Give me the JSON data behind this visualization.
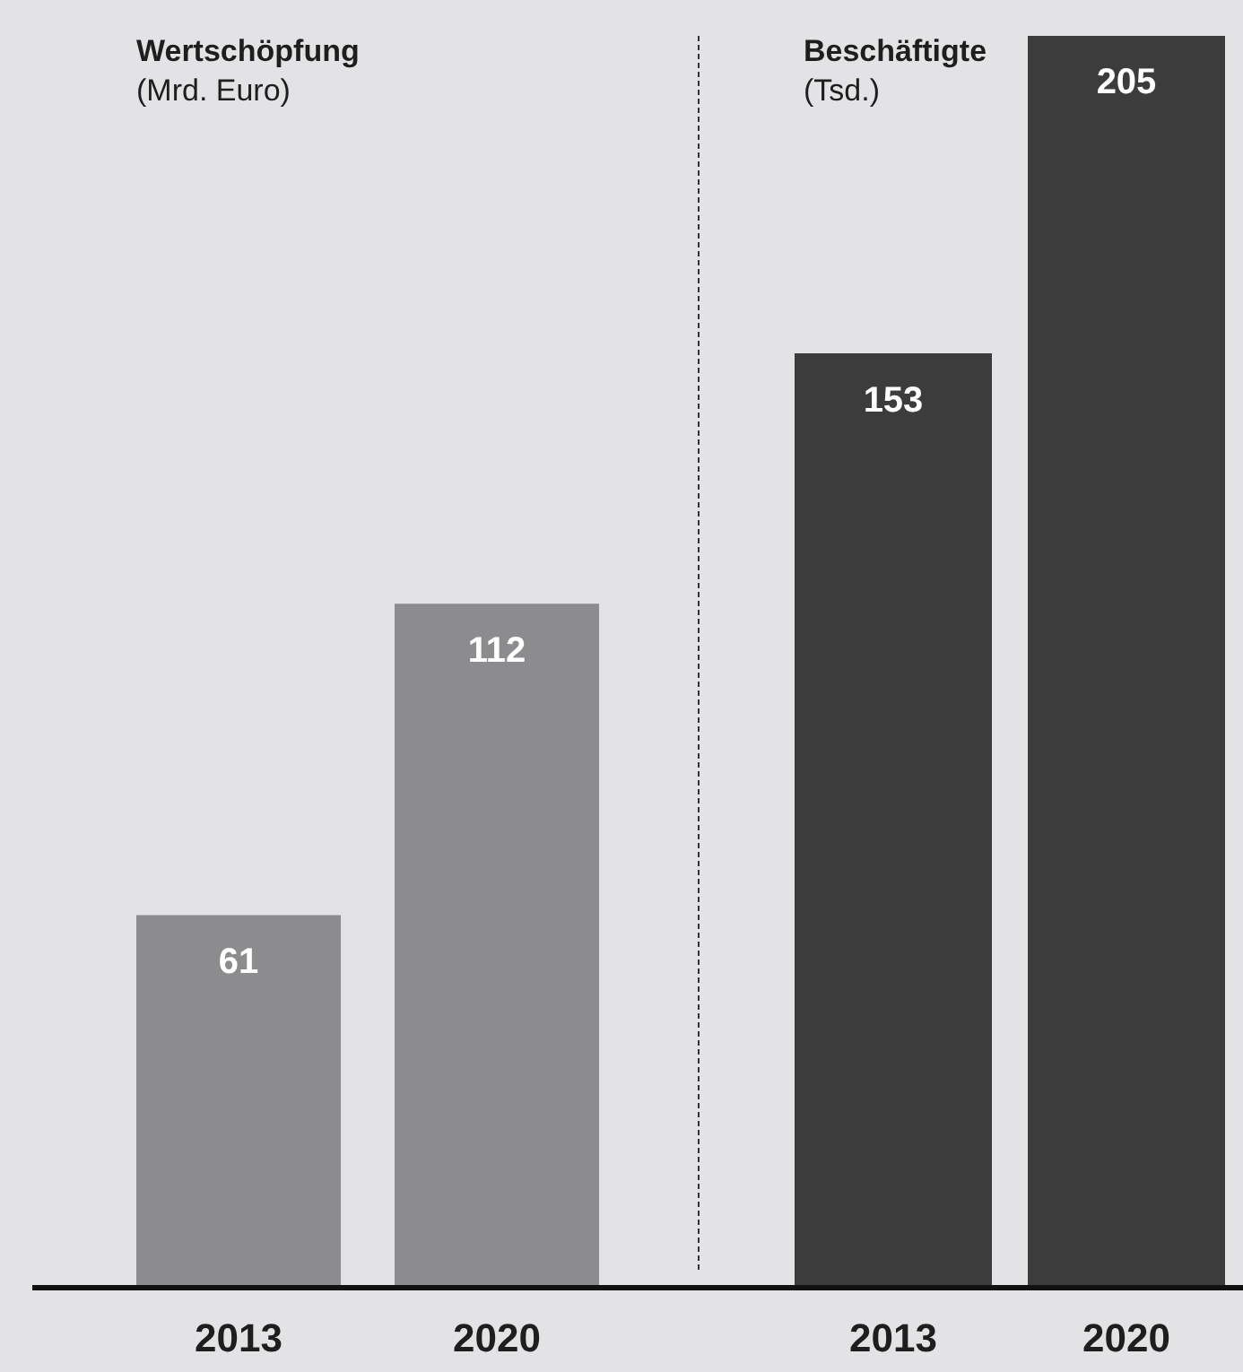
{
  "chart_data": [
    {
      "type": "bar",
      "title": "Wertschöpfung",
      "subtitle": "(Mrd. Euro)",
      "categories": [
        "2013",
        "2020"
      ],
      "values": [
        61,
        112
      ],
      "color": "#8c8c8e",
      "data_labels": true
    },
    {
      "type": "bar",
      "title": "Beschäftigte",
      "subtitle": "(Tsd.)",
      "categories": [
        "2013",
        "2020"
      ],
      "values": [
        153,
        205
      ],
      "color": "#3c3c3c",
      "data_labels": true
    }
  ]
}
